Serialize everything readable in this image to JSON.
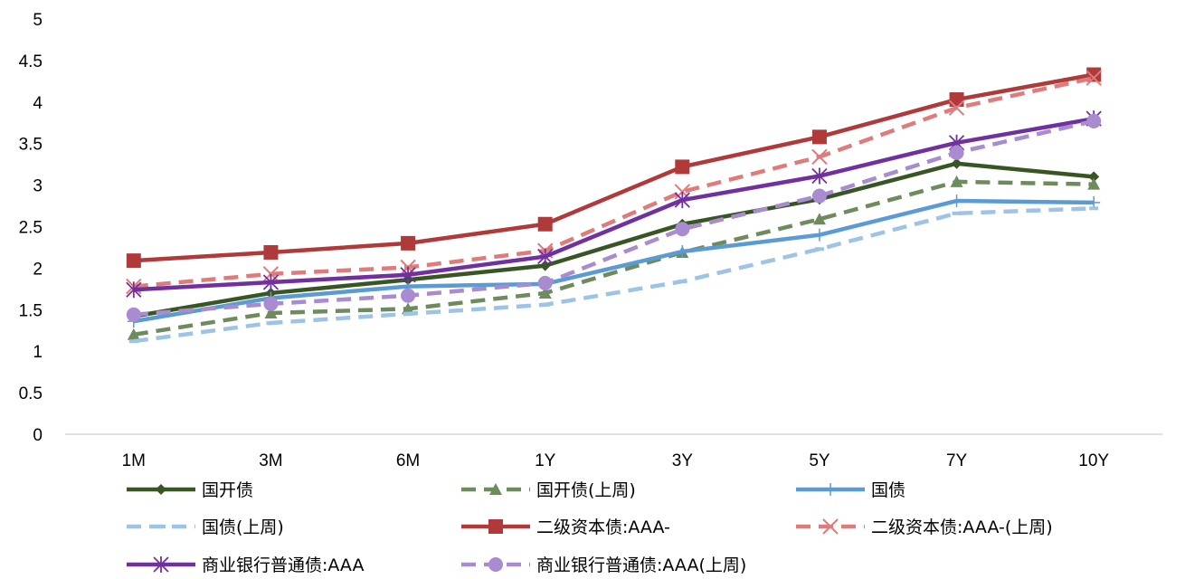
{
  "chart_data": {
    "type": "line",
    "title": "",
    "xlabel": "",
    "ylabel": "",
    "ylim": [
      0,
      5
    ],
    "yticks": [
      "0",
      "0.5",
      "1",
      "1.5",
      "2",
      "2.5",
      "3",
      "3.5",
      "4",
      "4.5",
      "5"
    ],
    "categories": [
      "1M",
      "3M",
      "6M",
      "1Y",
      "3Y",
      "5Y",
      "7Y",
      "10Y"
    ],
    "grid": false,
    "legend_position": "bottom",
    "series": [
      {
        "name": "国开债",
        "values": [
          1.42,
          1.7,
          1.86,
          2.03,
          2.53,
          2.83,
          3.26,
          3.1
        ],
        "color": "#375623",
        "dash": "solid",
        "marker": "diamond"
      },
      {
        "name": "国开债(上周)",
        "values": [
          1.2,
          1.46,
          1.51,
          1.7,
          2.19,
          2.59,
          3.04,
          3.01
        ],
        "color": "#6E8B5D",
        "dash": "dashed",
        "marker": "triangle"
      },
      {
        "name": "国债",
        "values": [
          1.36,
          1.64,
          1.78,
          1.81,
          2.2,
          2.4,
          2.81,
          2.79
        ],
        "color": "#5B9BD5",
        "dash": "solid",
        "marker": "plus"
      },
      {
        "name": "国债(上周)",
        "values": [
          1.12,
          1.34,
          1.45,
          1.56,
          1.84,
          2.23,
          2.66,
          2.72
        ],
        "color": "#9DC3E6",
        "dash": "dashed",
        "marker": "dash"
      },
      {
        "name": "二级资本债:AAA-",
        "values": [
          2.09,
          2.19,
          2.3,
          2.53,
          3.22,
          3.58,
          4.03,
          4.33
        ],
        "color": "#B03A3A",
        "dash": "solid",
        "marker": "square"
      },
      {
        "name": "二级资本债:AAA-(上周)",
        "values": [
          1.78,
          1.93,
          2.01,
          2.21,
          2.92,
          3.34,
          3.93,
          4.29
        ],
        "color": "#E07B7B",
        "dash": "dashed",
        "marker": "x"
      },
      {
        "name": "商业银行普通债:AAA",
        "values": [
          1.74,
          1.83,
          1.92,
          2.14,
          2.82,
          3.11,
          3.51,
          3.8
        ],
        "color": "#7030A0",
        "dash": "solid",
        "marker": "asterisk"
      },
      {
        "name": "商业银行普通债:AAA(上周)",
        "values": [
          1.44,
          1.57,
          1.67,
          1.82,
          2.47,
          2.87,
          3.39,
          3.77
        ],
        "color": "#A98BD0",
        "dash": "dashed",
        "marker": "circle"
      }
    ]
  }
}
